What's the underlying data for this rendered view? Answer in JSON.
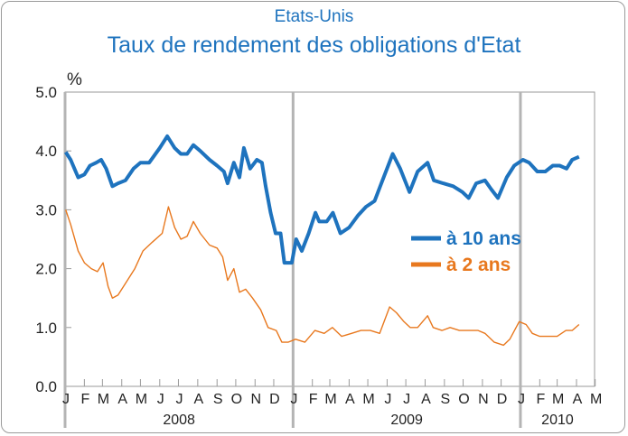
{
  "chart_data": {
    "type": "line",
    "title": "Etats-Unis",
    "subtitle": "Taux de rendement des obligations d'Etat",
    "yunit": "%",
    "ylim": [
      0,
      5
    ],
    "y_ticks": [
      "0.0",
      "1.0",
      "2.0",
      "3.0",
      "4.0",
      "5.0"
    ],
    "x_start": "2008-01",
    "x_end": "2010-04",
    "month_labels": [
      "J",
      "F",
      "M",
      "A",
      "M",
      "J",
      "J",
      "A",
      "S",
      "O",
      "N",
      "D",
      "J",
      "F",
      "M",
      "A",
      "M",
      "J",
      "J",
      "A",
      "S",
      "O",
      "N",
      "D",
      "J",
      "F",
      "M",
      "A",
      "M"
    ],
    "year_labels": [
      "2008",
      "2009",
      "2010"
    ],
    "grid": false,
    "legend_position": "right",
    "series": [
      {
        "name": "à 10 ans",
        "color": "#1e73be",
        "values": [
          [
            "2008-01-02",
            3.98
          ],
          [
            "2008-01-10",
            3.85
          ],
          [
            "2008-01-22",
            3.55
          ],
          [
            "2008-02-01",
            3.6
          ],
          [
            "2008-02-10",
            3.75
          ],
          [
            "2008-02-20",
            3.8
          ],
          [
            "2008-02-28",
            3.85
          ],
          [
            "2008-03-07",
            3.7
          ],
          [
            "2008-03-17",
            3.4
          ],
          [
            "2008-03-26",
            3.45
          ],
          [
            "2008-04-07",
            3.5
          ],
          [
            "2008-04-20",
            3.7
          ],
          [
            "2008-05-01",
            3.8
          ],
          [
            "2008-05-15",
            3.8
          ],
          [
            "2008-06-01",
            4.05
          ],
          [
            "2008-06-13",
            4.25
          ],
          [
            "2008-06-25",
            4.05
          ],
          [
            "2008-07-05",
            3.95
          ],
          [
            "2008-07-15",
            3.95
          ],
          [
            "2008-07-25",
            4.1
          ],
          [
            "2008-08-05",
            4.0
          ],
          [
            "2008-08-20",
            3.85
          ],
          [
            "2008-09-01",
            3.75
          ],
          [
            "2008-09-12",
            3.65
          ],
          [
            "2008-09-18",
            3.45
          ],
          [
            "2008-09-28",
            3.8
          ],
          [
            "2008-10-07",
            3.55
          ],
          [
            "2008-10-14",
            4.05
          ],
          [
            "2008-10-24",
            3.7
          ],
          [
            "2008-11-04",
            3.85
          ],
          [
            "2008-11-12",
            3.8
          ],
          [
            "2008-11-18",
            3.4
          ],
          [
            "2008-11-26",
            2.95
          ],
          [
            "2008-12-04",
            2.6
          ],
          [
            "2008-12-12",
            2.6
          ],
          [
            "2008-12-18",
            2.1
          ],
          [
            "2008-12-30",
            2.1
          ],
          [
            "2009-01-06",
            2.5
          ],
          [
            "2009-01-15",
            2.3
          ],
          [
            "2009-01-26",
            2.6
          ],
          [
            "2009-02-06",
            2.95
          ],
          [
            "2009-02-12",
            2.8
          ],
          [
            "2009-02-24",
            2.8
          ],
          [
            "2009-03-06",
            2.95
          ],
          [
            "2009-03-18",
            2.6
          ],
          [
            "2009-04-01",
            2.7
          ],
          [
            "2009-04-15",
            2.9
          ],
          [
            "2009-04-28",
            3.05
          ],
          [
            "2009-05-12",
            3.15
          ],
          [
            "2009-05-21",
            3.4
          ],
          [
            "2009-06-10",
            3.95
          ],
          [
            "2009-06-22",
            3.7
          ],
          [
            "2009-07-07",
            3.3
          ],
          [
            "2009-07-20",
            3.65
          ],
          [
            "2009-08-05",
            3.8
          ],
          [
            "2009-08-15",
            3.5
          ],
          [
            "2009-08-30",
            3.45
          ],
          [
            "2009-09-15",
            3.4
          ],
          [
            "2009-09-30",
            3.3
          ],
          [
            "2009-10-10",
            3.2
          ],
          [
            "2009-10-22",
            3.45
          ],
          [
            "2009-11-05",
            3.5
          ],
          [
            "2009-11-15",
            3.35
          ],
          [
            "2009-11-26",
            3.2
          ],
          [
            "2009-12-10",
            3.55
          ],
          [
            "2009-12-22",
            3.75
          ],
          [
            "2010-01-05",
            3.85
          ],
          [
            "2010-01-15",
            3.8
          ],
          [
            "2010-01-28",
            3.65
          ],
          [
            "2010-02-10",
            3.65
          ],
          [
            "2010-02-22",
            3.75
          ],
          [
            "2010-03-05",
            3.75
          ],
          [
            "2010-03-16",
            3.7
          ],
          [
            "2010-03-25",
            3.85
          ],
          [
            "2010-04-05",
            3.9
          ]
        ]
      },
      {
        "name": "à 2 ans",
        "color": "#e8781e",
        "values": [
          [
            "2008-01-02",
            3.0
          ],
          [
            "2008-01-10",
            2.75
          ],
          [
            "2008-01-22",
            2.3
          ],
          [
            "2008-02-01",
            2.1
          ],
          [
            "2008-02-12",
            2.0
          ],
          [
            "2008-02-22",
            1.95
          ],
          [
            "2008-03-02",
            2.1
          ],
          [
            "2008-03-10",
            1.7
          ],
          [
            "2008-03-17",
            1.5
          ],
          [
            "2008-03-26",
            1.55
          ],
          [
            "2008-04-07",
            1.75
          ],
          [
            "2008-04-22",
            2.0
          ],
          [
            "2008-05-05",
            2.3
          ],
          [
            "2008-05-20",
            2.45
          ],
          [
            "2008-06-05",
            2.6
          ],
          [
            "2008-06-15",
            3.05
          ],
          [
            "2008-06-25",
            2.7
          ],
          [
            "2008-07-05",
            2.5
          ],
          [
            "2008-07-15",
            2.55
          ],
          [
            "2008-07-25",
            2.8
          ],
          [
            "2008-08-05",
            2.6
          ],
          [
            "2008-08-20",
            2.4
          ],
          [
            "2008-09-01",
            2.35
          ],
          [
            "2008-09-10",
            2.2
          ],
          [
            "2008-09-18",
            1.8
          ],
          [
            "2008-09-28",
            2.0
          ],
          [
            "2008-10-07",
            1.6
          ],
          [
            "2008-10-17",
            1.65
          ],
          [
            "2008-10-28",
            1.5
          ],
          [
            "2008-11-10",
            1.3
          ],
          [
            "2008-11-22",
            1.0
          ],
          [
            "2008-12-05",
            0.95
          ],
          [
            "2008-12-14",
            0.75
          ],
          [
            "2008-12-24",
            0.75
          ],
          [
            "2009-01-05",
            0.8
          ],
          [
            "2009-01-20",
            0.75
          ],
          [
            "2009-02-05",
            0.95
          ],
          [
            "2009-02-20",
            0.9
          ],
          [
            "2009-03-05",
            1.0
          ],
          [
            "2009-03-20",
            0.85
          ],
          [
            "2009-04-05",
            0.9
          ],
          [
            "2009-04-20",
            0.95
          ],
          [
            "2009-05-05",
            0.95
          ],
          [
            "2009-05-20",
            0.9
          ],
          [
            "2009-06-05",
            1.35
          ],
          [
            "2009-06-16",
            1.25
          ],
          [
            "2009-06-28",
            1.1
          ],
          [
            "2009-07-08",
            1.0
          ],
          [
            "2009-07-20",
            1.0
          ],
          [
            "2009-08-05",
            1.2
          ],
          [
            "2009-08-14",
            1.0
          ],
          [
            "2009-08-28",
            0.95
          ],
          [
            "2009-09-10",
            1.0
          ],
          [
            "2009-09-25",
            0.95
          ],
          [
            "2009-10-10",
            0.95
          ],
          [
            "2009-10-25",
            0.95
          ],
          [
            "2009-11-05",
            0.9
          ],
          [
            "2009-11-20",
            0.75
          ],
          [
            "2009-12-05",
            0.7
          ],
          [
            "2009-12-15",
            0.8
          ],
          [
            "2009-12-30",
            1.1
          ],
          [
            "2010-01-10",
            1.05
          ],
          [
            "2010-01-20",
            0.9
          ],
          [
            "2010-02-01",
            0.85
          ],
          [
            "2010-02-15",
            0.85
          ],
          [
            "2010-03-01",
            0.85
          ],
          [
            "2010-03-15",
            0.95
          ],
          [
            "2010-03-25",
            0.95
          ],
          [
            "2010-04-05",
            1.05
          ]
        ]
      }
    ]
  }
}
